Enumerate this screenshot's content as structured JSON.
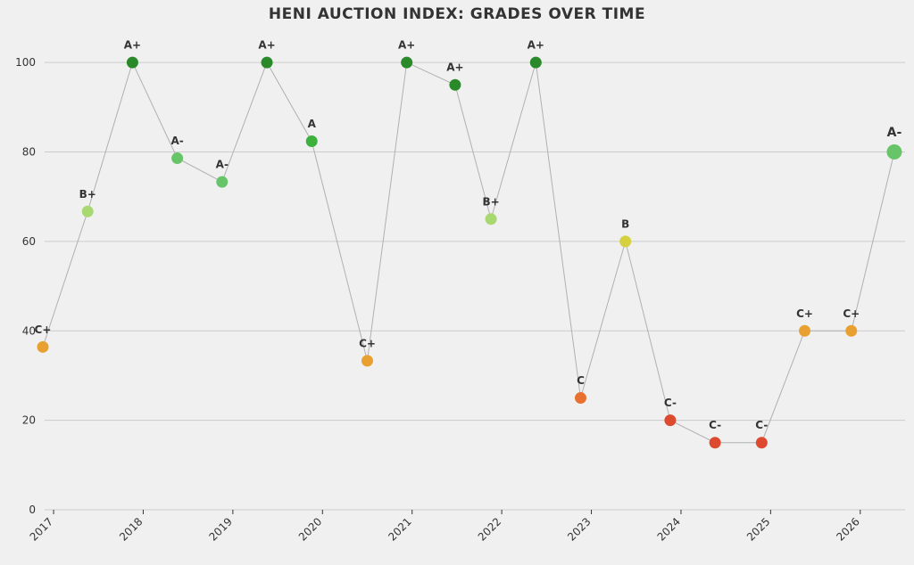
{
  "chart_data": {
    "type": "scatter",
    "title": "HENI AUCTION INDEX: GRADES OVER TIME",
    "xlabel": "",
    "ylabel": "",
    "ylim": [
      0,
      108
    ],
    "xlim": [
      2016.9,
      2026.5
    ],
    "yticks": [
      0,
      20,
      40,
      60,
      80,
      100
    ],
    "xticks": [
      "2017",
      "2018",
      "2019",
      "2020",
      "2021",
      "2022",
      "2023",
      "2024",
      "2025",
      "2026"
    ],
    "grid": "horizontal",
    "points": [
      {
        "x": 2016.88,
        "y": 36.4,
        "grade": "C+",
        "color": "#e8a030"
      },
      {
        "x": 2017.38,
        "y": 66.7,
        "grade": "B+",
        "color": "#a8d870"
      },
      {
        "x": 2017.88,
        "y": 100,
        "grade": "A+",
        "color": "#2a8a2a"
      },
      {
        "x": 2018.38,
        "y": 78.6,
        "grade": "A-",
        "color": "#68c468"
      },
      {
        "x": 2018.88,
        "y": 73.3,
        "grade": "A-",
        "color": "#68c468"
      },
      {
        "x": 2019.38,
        "y": 100,
        "grade": "A+",
        "color": "#2a8a2a"
      },
      {
        "x": 2019.88,
        "y": 82.4,
        "grade": "A",
        "color": "#3cb13c"
      },
      {
        "x": 2020.5,
        "y": 33.3,
        "grade": "C+",
        "color": "#e8a030"
      },
      {
        "x": 2020.94,
        "y": 100,
        "grade": "A+",
        "color": "#2a8a2a"
      },
      {
        "x": 2021.48,
        "y": 95,
        "grade": "A+",
        "color": "#2a8a2a"
      },
      {
        "x": 2021.88,
        "y": 65,
        "grade": "B+",
        "color": "#a8d870"
      },
      {
        "x": 2022.38,
        "y": 100,
        "grade": "A+",
        "color": "#2a8a2a"
      },
      {
        "x": 2022.88,
        "y": 25,
        "grade": "C",
        "color": "#e87030"
      },
      {
        "x": 2023.38,
        "y": 60,
        "grade": "B",
        "color": "#d4d040"
      },
      {
        "x": 2023.88,
        "y": 20,
        "grade": "C-",
        "color": "#dd4a30"
      },
      {
        "x": 2024.38,
        "y": 15,
        "grade": "C-",
        "color": "#dd4a30"
      },
      {
        "x": 2024.9,
        "y": 15,
        "grade": "C-",
        "color": "#dd4a30"
      },
      {
        "x": 2025.38,
        "y": 40,
        "grade": "C+",
        "color": "#e8a030"
      },
      {
        "x": 2025.9,
        "y": 40,
        "grade": "C+",
        "color": "#e8a030"
      },
      {
        "x": 2026.38,
        "y": 80,
        "grade": "A-",
        "color": "#68c468"
      }
    ]
  }
}
